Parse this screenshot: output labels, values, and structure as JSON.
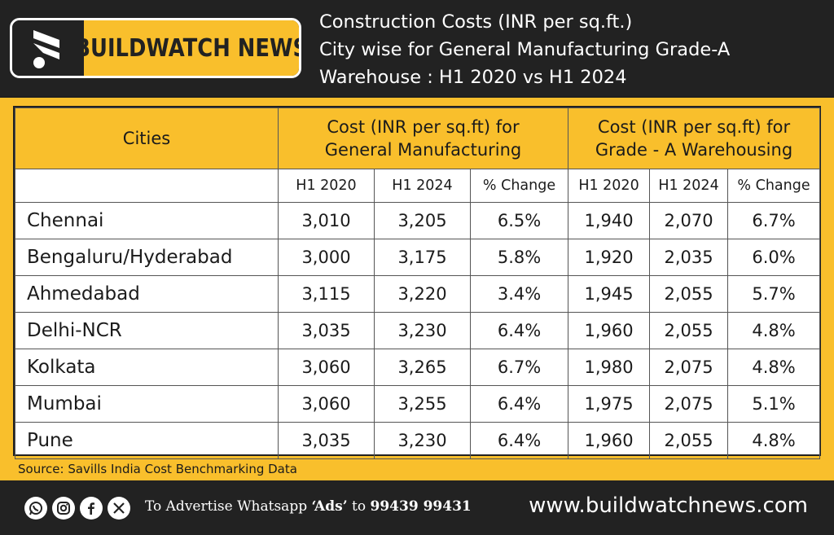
{
  "brand": {
    "name": "BUILDWATCH NEWS",
    "website": "www.buildwatchnews.com",
    "colors": {
      "accent": "#f9bf2c",
      "dark": "#222222",
      "text_light": "#ffffff"
    }
  },
  "header": {
    "title_lines": [
      "Construction Costs (INR per sq.ft.)",
      "City wise for General Manufacturing Grade-A",
      "Warehouse : H1 2020 vs H1 2024"
    ]
  },
  "footer": {
    "ad_prefix": "To Advertise Whatsapp ",
    "ad_keyword": "‘Ads’",
    "ad_middle": " to ",
    "ad_number": "99439 99431",
    "social_icons": [
      "whatsapp-icon",
      "instagram-icon",
      "facebook-icon",
      "x-icon"
    ]
  },
  "chart_data": {
    "type": "table",
    "title": "Construction Costs (INR per sq.ft.) City wise for General Manufacturing Grade-A Warehouse : H1 2020 vs H1 2024",
    "city_header": "Cities",
    "groups": [
      {
        "line1": "Cost (INR per sq.ft) for",
        "line2": "General Manufacturing"
      },
      {
        "line1": "Cost (INR per sq.ft) for",
        "line2": "Grade - A Warehousing"
      }
    ],
    "subheaders": [
      "H1 2020",
      "H1 2024",
      "% Change",
      "H1 2020",
      "H1 2024",
      "% Change"
    ],
    "rows": [
      {
        "city": "Chennai",
        "values": [
          "3,010",
          "3,205",
          "6.5%",
          "1,940",
          "2,070",
          "6.7%"
        ]
      },
      {
        "city": "Bengaluru/Hyderabad",
        "values": [
          "3,000",
          "3,175",
          "5.8%",
          "1,920",
          "2,035",
          "6.0%"
        ]
      },
      {
        "city": "Ahmedabad",
        "values": [
          "3,115",
          "3,220",
          "3.4%",
          "1,945",
          "2,055",
          "5.7%"
        ]
      },
      {
        "city": "Delhi-NCR",
        "values": [
          "3,035",
          "3,230",
          "6.4%",
          "1,960",
          "2,055",
          "4.8%"
        ]
      },
      {
        "city": "Kolkata",
        "values": [
          "3,060",
          "3,265",
          "6.7%",
          "1,980",
          "2,075",
          "4.8%"
        ]
      },
      {
        "city": "Mumbai",
        "values": [
          "3,060",
          "3,255",
          "6.4%",
          "1,975",
          "2,075",
          "5.1%"
        ]
      },
      {
        "city": "Pune",
        "values": [
          "3,035",
          "3,230",
          "6.4%",
          "1,960",
          "2,055",
          "4.8%"
        ]
      }
    ],
    "source": "Source: Savills India Cost Benchmarking Data"
  }
}
